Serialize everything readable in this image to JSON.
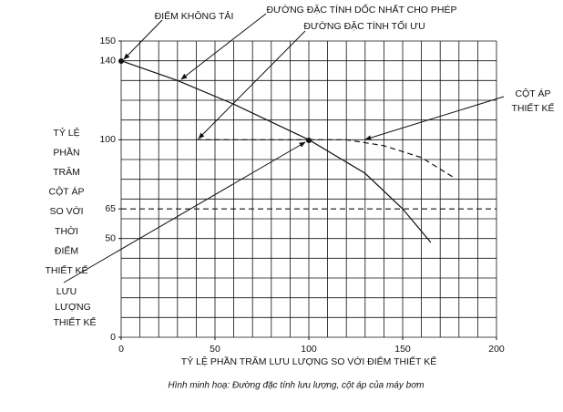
{
  "chart_data": {
    "type": "line",
    "caption": "Hình minh hoạ: Đường đặc tính lưu lượng, cột áp của máy bơm",
    "xlabel": "TỶ LỆ PHẦN TRĂM LƯU LƯỢNG SO VỚI ĐIỂM THIẾT KẾ",
    "ylabel_lines": [
      "TỶ LỆ",
      "PHẦN",
      "TRĂM",
      "CỘT ÁP",
      "SO VỚI",
      "THỜI",
      "ĐIỂM",
      "THIẾT KẾ"
    ],
    "annotations": {
      "no_load": "ĐIỂM KHÔNG TẢI",
      "steepest": "ĐƯỜNG ĐẶC TÍNH DỐC NHẤT CHO PHÉP",
      "optimum": "ĐƯỜNG ĐẶC TÍNH TỐI ƯU",
      "design_head": [
        "CỘT ÁP",
        "THIẾT KẾ"
      ],
      "design_flow": [
        "LƯU",
        "LƯỢNG",
        "THIẾT KẾ"
      ]
    },
    "xlim": [
      0,
      200
    ],
    "ylim": [
      0,
      150
    ],
    "xticks": [
      0,
      50,
      100,
      150,
      200
    ],
    "yticks": [
      0,
      50,
      65,
      100,
      140,
      150
    ],
    "grid": true,
    "grid_spacing": 10,
    "series": [
      {
        "color": "#111111",
        "dash": false,
        "x": [
          0,
          30,
          60,
          100,
          130,
          150,
          165
        ],
        "values": [
          140,
          130,
          118,
          100,
          83,
          65,
          48
        ]
      },
      {
        "color": "#111111",
        "dash": true,
        "x": [
          100,
          120,
          140,
          160,
          177
        ],
        "values": [
          100,
          100,
          97,
          91,
          81
        ]
      },
      {
        "color": "#111111",
        "dash": true,
        "x": [
          0,
          200
        ],
        "values": [
          65,
          65
        ]
      },
      {
        "color": "#111111",
        "dash": true,
        "x": [
          40,
          100
        ],
        "values": [
          100,
          100
        ]
      }
    ]
  }
}
